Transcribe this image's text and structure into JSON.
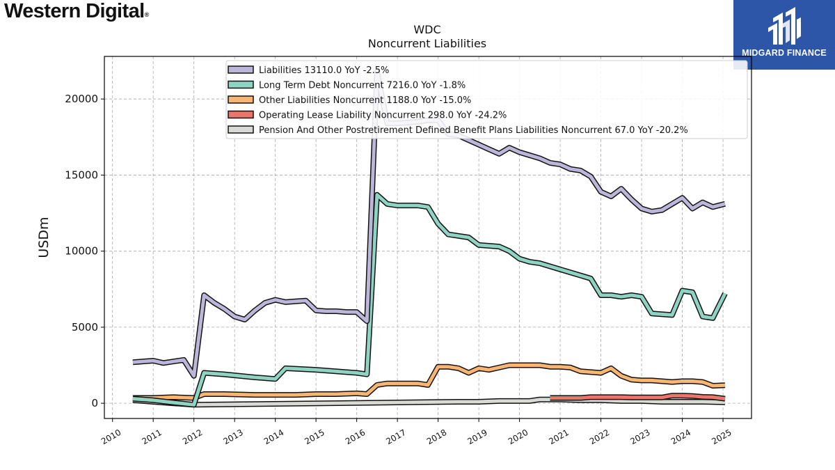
{
  "brand": {
    "name": "Western Digital",
    "reg": "®"
  },
  "watermark": {
    "text": "MIDGARD FINANCE",
    "bg": "#2d55a8"
  },
  "chart_data": {
    "type": "line",
    "title": "WDC",
    "subtitle": "Noncurrent  Liabilities",
    "xlabel": "",
    "ylabel": "USDm",
    "xlim": [
      2009.8,
      2025.7
    ],
    "ylim": [
      -1000,
      22800
    ],
    "yticks": [
      0,
      5000,
      10000,
      15000,
      20000
    ],
    "xticks": [
      2010,
      2011,
      2012,
      2013,
      2014,
      2015,
      2016,
      2017,
      2018,
      2019,
      2020,
      2021,
      2022,
      2023,
      2024,
      2025
    ],
    "grid": true,
    "legend_position": "top",
    "series": [
      {
        "name": "Liabilities  13110.0 YoY -2.5%",
        "color": "#bcb7d9",
        "points": [
          [
            2010.5,
            2700
          ],
          [
            2011.0,
            2800
          ],
          [
            2011.25,
            2650
          ],
          [
            2011.75,
            2850
          ],
          [
            2012.0,
            1800
          ],
          [
            2012.25,
            7100
          ],
          [
            2012.5,
            6600
          ],
          [
            2012.75,
            6200
          ],
          [
            2013.0,
            5700
          ],
          [
            2013.25,
            5500
          ],
          [
            2013.5,
            6100
          ],
          [
            2013.75,
            6600
          ],
          [
            2014.0,
            6800
          ],
          [
            2014.25,
            6650
          ],
          [
            2014.5,
            6700
          ],
          [
            2014.75,
            6750
          ],
          [
            2015.0,
            6100
          ],
          [
            2015.25,
            6050
          ],
          [
            2015.5,
            6050
          ],
          [
            2015.75,
            6000
          ],
          [
            2016.0,
            6000
          ],
          [
            2016.25,
            5400
          ],
          [
            2016.5,
            21800
          ],
          [
            2016.75,
            18400
          ],
          [
            2017.0,
            18400
          ],
          [
            2017.5,
            18500
          ],
          [
            2017.75,
            18600
          ],
          [
            2018.0,
            18600
          ],
          [
            2018.25,
            17700
          ],
          [
            2018.5,
            17600
          ],
          [
            2018.75,
            17300
          ],
          [
            2019.0,
            17000
          ],
          [
            2019.25,
            16700
          ],
          [
            2019.5,
            16400
          ],
          [
            2019.75,
            16800
          ],
          [
            2020.0,
            16500
          ],
          [
            2020.25,
            16300
          ],
          [
            2020.5,
            16100
          ],
          [
            2020.75,
            15800
          ],
          [
            2021.0,
            15700
          ],
          [
            2021.25,
            15400
          ],
          [
            2021.5,
            15300
          ],
          [
            2021.75,
            14900
          ],
          [
            2022.0,
            13900
          ],
          [
            2022.25,
            13600
          ],
          [
            2022.5,
            14100
          ],
          [
            2022.75,
            13400
          ],
          [
            2023.0,
            12800
          ],
          [
            2023.25,
            12600
          ],
          [
            2023.5,
            12700
          ],
          [
            2023.75,
            13100
          ],
          [
            2024.0,
            13500
          ],
          [
            2024.25,
            12800
          ],
          [
            2024.5,
            13200
          ],
          [
            2024.75,
            12900
          ],
          [
            2025.05,
            13110
          ]
        ]
      },
      {
        "name": "Long Term Debt Noncurrent  7216.0 YoY -1.8%",
        "color": "#8fd3c3",
        "points": [
          [
            2010.5,
            300
          ],
          [
            2011.0,
            200
          ],
          [
            2011.5,
            50
          ],
          [
            2012.0,
            -100
          ],
          [
            2012.25,
            2000
          ],
          [
            2012.75,
            1900
          ],
          [
            2013.5,
            1700
          ],
          [
            2014.0,
            1600
          ],
          [
            2014.25,
            2300
          ],
          [
            2015.0,
            2200
          ],
          [
            2016.0,
            2000
          ],
          [
            2016.25,
            1900
          ],
          [
            2016.5,
            13700
          ],
          [
            2016.75,
            13100
          ],
          [
            2017.0,
            13000
          ],
          [
            2017.5,
            13000
          ],
          [
            2017.75,
            12900
          ],
          [
            2018.0,
            11800
          ],
          [
            2018.25,
            11100
          ],
          [
            2018.5,
            11000
          ],
          [
            2018.75,
            10900
          ],
          [
            2019.0,
            10400
          ],
          [
            2019.5,
            10300
          ],
          [
            2019.75,
            10000
          ],
          [
            2020.0,
            9500
          ],
          [
            2020.25,
            9300
          ],
          [
            2020.5,
            9200
          ],
          [
            2021.0,
            8800
          ],
          [
            2021.5,
            8400
          ],
          [
            2021.75,
            8200
          ],
          [
            2022.0,
            7100
          ],
          [
            2022.25,
            7100
          ],
          [
            2022.5,
            7000
          ],
          [
            2022.75,
            7100
          ],
          [
            2023.0,
            7000
          ],
          [
            2023.25,
            5900
          ],
          [
            2023.75,
            5800
          ],
          [
            2024.0,
            7400
          ],
          [
            2024.25,
            7300
          ],
          [
            2024.5,
            5700
          ],
          [
            2024.75,
            5600
          ],
          [
            2025.05,
            7216
          ]
        ]
      },
      {
        "name": "Other Liabilities Noncurrent  1188.0 YoY -15.0%",
        "color": "#f9b572",
        "points": [
          [
            2010.5,
            350
          ],
          [
            2011.0,
            350
          ],
          [
            2011.5,
            400
          ],
          [
            2012.0,
            350
          ],
          [
            2012.25,
            600
          ],
          [
            2012.75,
            600
          ],
          [
            2013.5,
            550
          ],
          [
            2014.0,
            550
          ],
          [
            2014.5,
            550
          ],
          [
            2015.0,
            600
          ],
          [
            2015.5,
            600
          ],
          [
            2016.0,
            650
          ],
          [
            2016.25,
            600
          ],
          [
            2016.5,
            1200
          ],
          [
            2016.75,
            1300
          ],
          [
            2017.0,
            1300
          ],
          [
            2017.5,
            1300
          ],
          [
            2017.75,
            1200
          ],
          [
            2018.0,
            2400
          ],
          [
            2018.25,
            2400
          ],
          [
            2018.5,
            2300
          ],
          [
            2018.75,
            2000
          ],
          [
            2019.0,
            2300
          ],
          [
            2019.25,
            2200
          ],
          [
            2019.75,
            2500
          ],
          [
            2020.0,
            2500
          ],
          [
            2020.5,
            2500
          ],
          [
            2020.75,
            2400
          ],
          [
            2021.0,
            2400
          ],
          [
            2021.25,
            2350
          ],
          [
            2021.5,
            2100
          ],
          [
            2021.75,
            2050
          ],
          [
            2022.0,
            2000
          ],
          [
            2022.25,
            2300
          ],
          [
            2022.5,
            1800
          ],
          [
            2022.75,
            1550
          ],
          [
            2023.0,
            1500
          ],
          [
            2023.25,
            1500
          ],
          [
            2023.5,
            1450
          ],
          [
            2023.75,
            1400
          ],
          [
            2024.0,
            1450
          ],
          [
            2024.25,
            1450
          ],
          [
            2024.5,
            1400
          ],
          [
            2024.75,
            1150
          ],
          [
            2025.05,
            1188
          ]
        ]
      },
      {
        "name": "Operating Lease Liability Noncurrent  298.0 YoY -24.2%",
        "color": "#e8776b",
        "points": [
          [
            2020.75,
            350
          ],
          [
            2021.0,
            350
          ],
          [
            2021.5,
            350
          ],
          [
            2021.75,
            400
          ],
          [
            2022.0,
            400
          ],
          [
            2022.5,
            400
          ],
          [
            2022.75,
            380
          ],
          [
            2023.0,
            380
          ],
          [
            2023.5,
            380
          ],
          [
            2023.75,
            500
          ],
          [
            2024.0,
            500
          ],
          [
            2024.25,
            480
          ],
          [
            2024.5,
            420
          ],
          [
            2024.75,
            400
          ],
          [
            2025.05,
            298
          ]
        ]
      },
      {
        "name": "Pension And Other Postretirement Defined Benefit Plans Liabilities Noncurrent  67.0 YoY -20.2%",
        "color": "#d9d9d6",
        "points": [
          [
            2010.5,
            200
          ],
          [
            2011.0,
            100
          ],
          [
            2011.5,
            0
          ],
          [
            2012.0,
            -100
          ],
          [
            2018.5,
            100
          ],
          [
            2019.0,
            100
          ],
          [
            2019.5,
            150
          ],
          [
            2020.0,
            150
          ],
          [
            2020.25,
            150
          ],
          [
            2020.5,
            250
          ],
          [
            2021.0,
            250
          ],
          [
            2021.5,
            200
          ],
          [
            2022.0,
            200
          ],
          [
            2022.5,
            150
          ],
          [
            2023.0,
            150
          ],
          [
            2023.5,
            100
          ],
          [
            2024.0,
            100
          ],
          [
            2024.5,
            100
          ],
          [
            2025.05,
            67
          ]
        ]
      }
    ]
  }
}
